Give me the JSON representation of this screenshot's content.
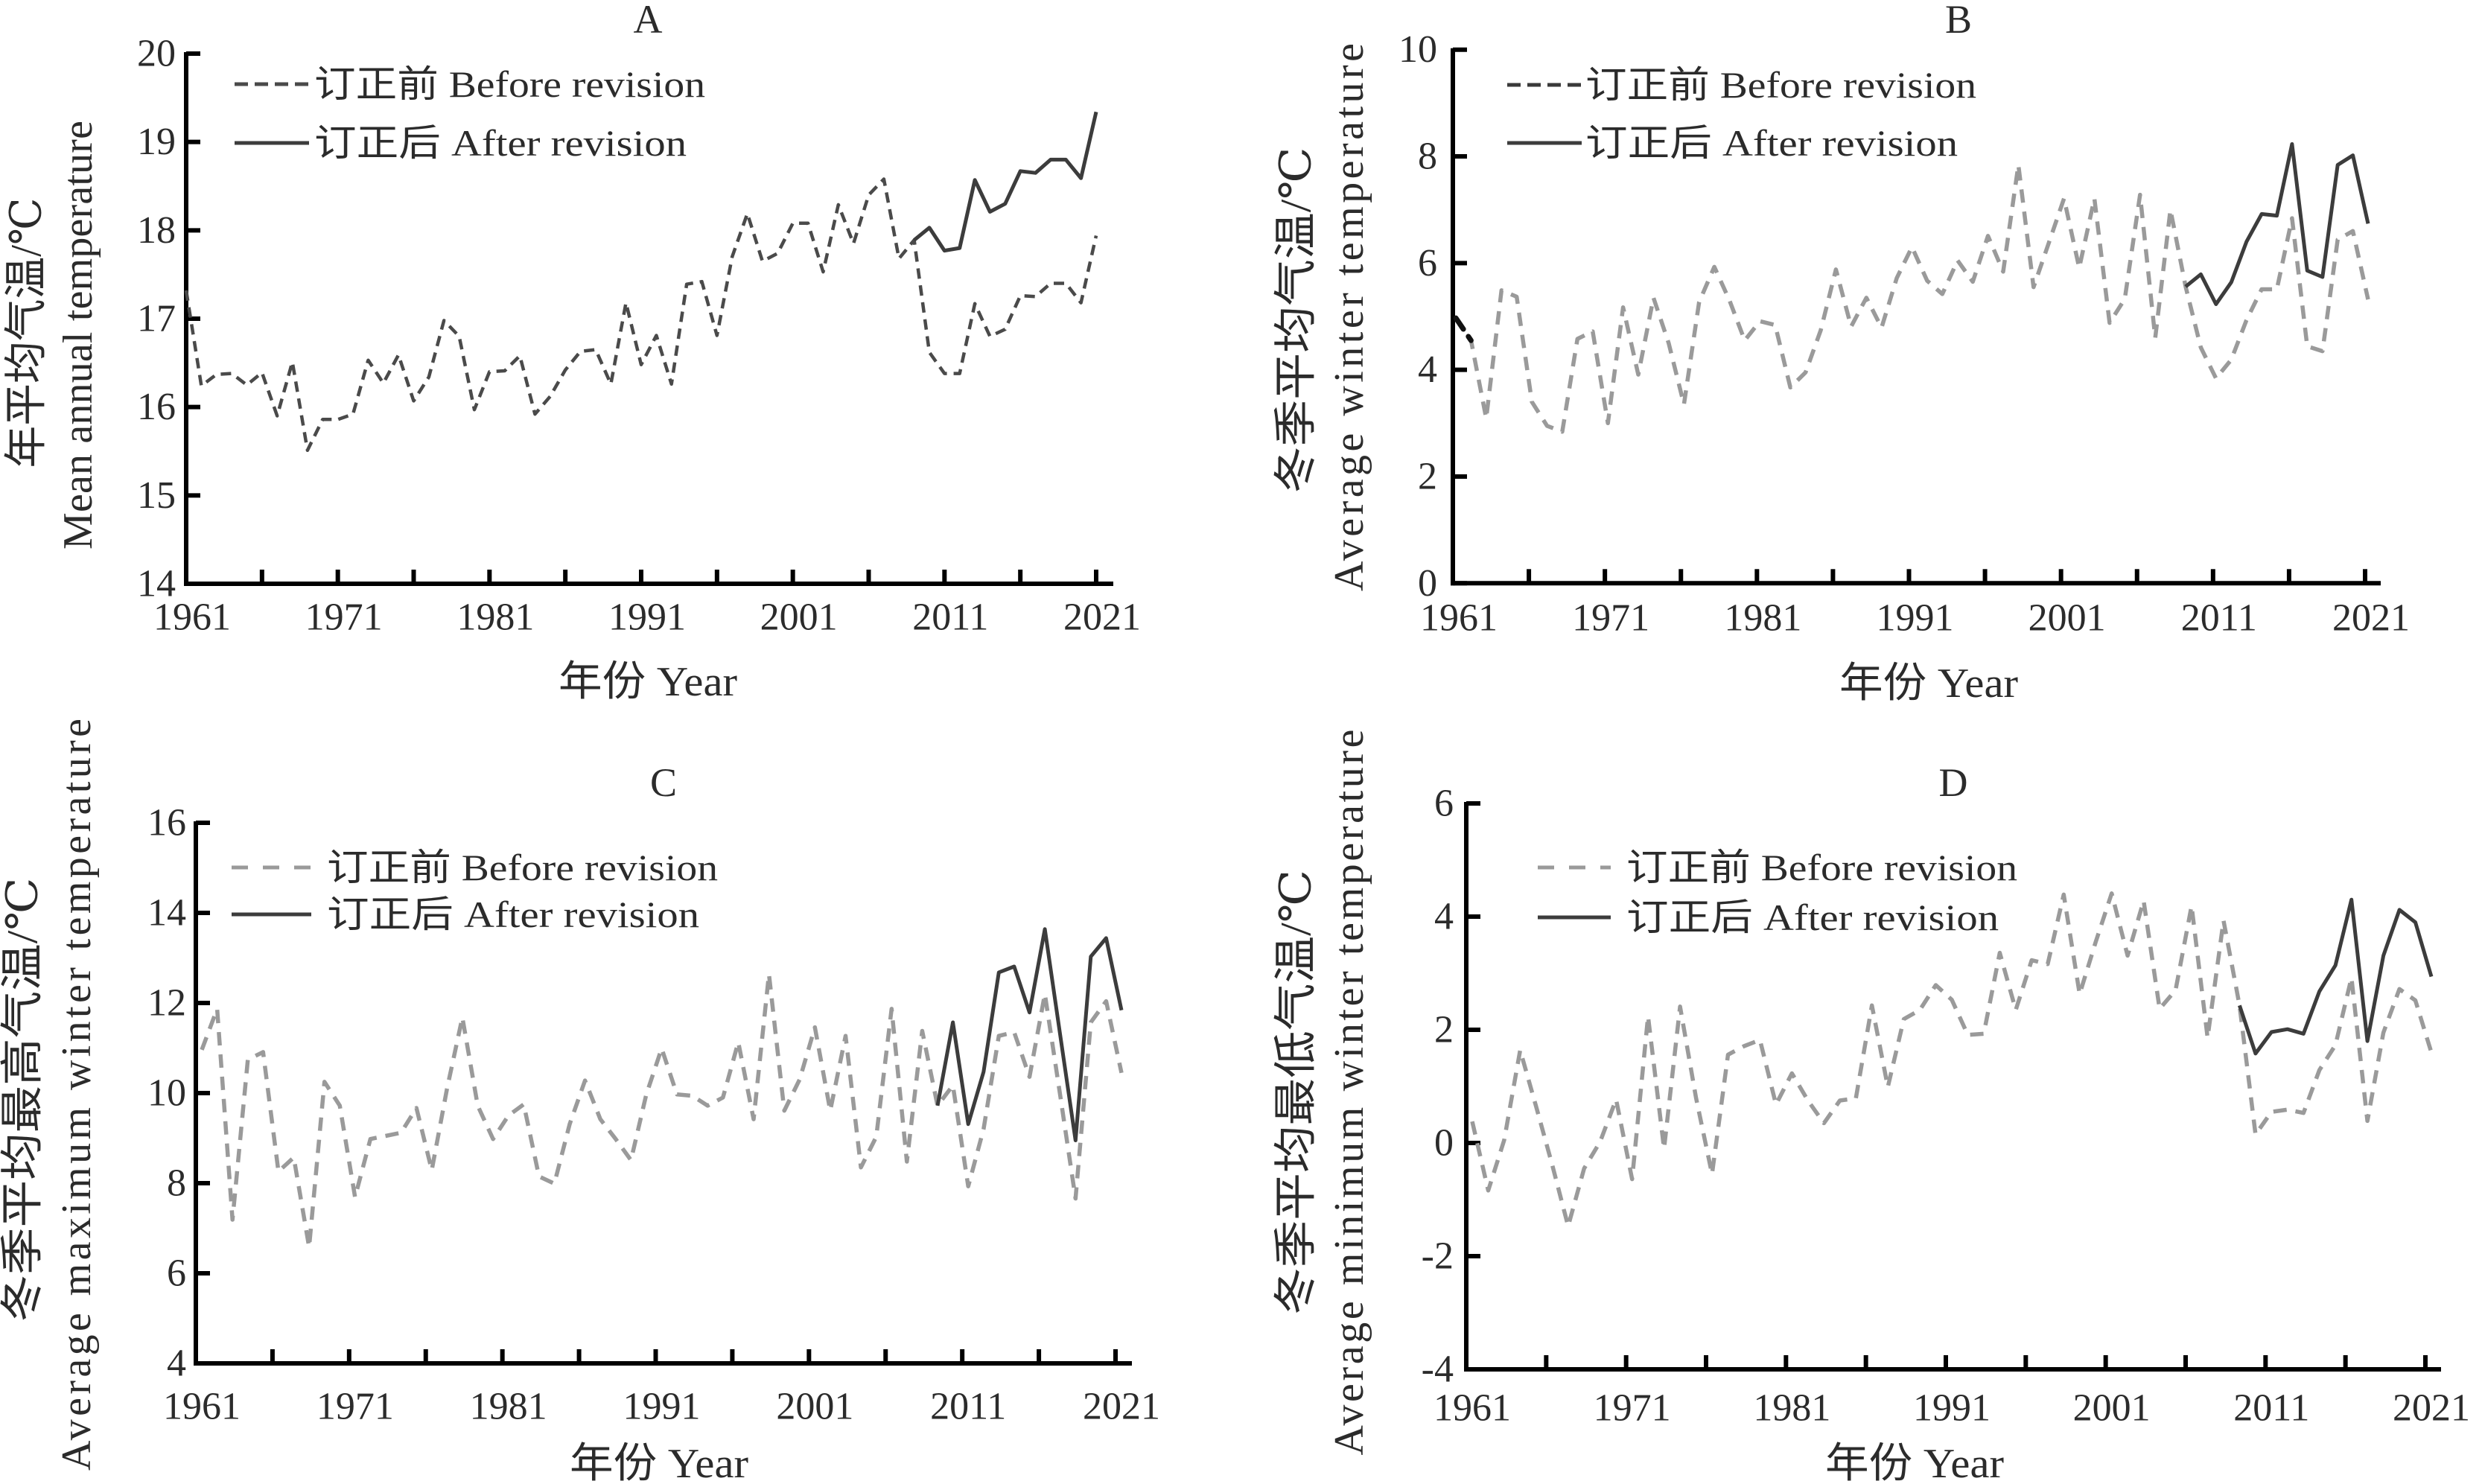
{
  "chart_data": [
    {
      "panel": "A",
      "type": "line",
      "title": "A",
      "xlabel": "年份 Year",
      "ylabel": [
        "年平均气温/℃",
        "Mean annual temperature"
      ],
      "xlim": [
        1961,
        2021
      ],
      "ylim": [
        14,
        20
      ],
      "grid": false,
      "legend": {
        "position": "top-left"
      },
      "xticks": [
        1961,
        1966,
        1971,
        1976,
        1981,
        1986,
        1991,
        1996,
        2001,
        2006,
        2011,
        2016,
        2021
      ],
      "xtick_labels": [
        "1961",
        "1971",
        "1981",
        "1991",
        "2001",
        "2011",
        "2021"
      ],
      "yticks": [
        14,
        15,
        16,
        17,
        18,
        19,
        20
      ],
      "ytick_labels": [
        "14",
        "15",
        "16",
        "17",
        "18",
        "19",
        "20"
      ],
      "series": [
        {
          "name": "订正前 Before revision",
          "style": "dashed",
          "color": "#4a4a4a",
          "legend_color": "#4a4a4a",
          "x": [
            1961,
            1962,
            1963,
            1964,
            1965,
            1966,
            1967,
            1968,
            1969,
            1970,
            1971,
            1972,
            1973,
            1974,
            1975,
            1976,
            1977,
            1978,
            1979,
            1980,
            1981,
            1982,
            1983,
            1984,
            1985,
            1986,
            1987,
            1988,
            1989,
            1990,
            1991,
            1992,
            1993,
            1994,
            1995,
            1996,
            1997,
            1998,
            1999,
            2000,
            2001,
            2002,
            2003,
            2004,
            2005,
            2006,
            2007,
            2008,
            2009,
            2010,
            2011,
            2012,
            2013,
            2014,
            2015,
            2016,
            2017,
            2018,
            2019,
            2020,
            2021
          ],
          "values": [
            17.32,
            16.24,
            16.37,
            16.38,
            16.25,
            16.39,
            15.9,
            16.51,
            15.51,
            15.86,
            15.86,
            15.92,
            16.53,
            16.27,
            16.59,
            16.07,
            16.34,
            16.98,
            16.8,
            15.97,
            16.4,
            16.41,
            16.58,
            15.92,
            16.12,
            16.42,
            16.63,
            16.65,
            16.26,
            17.18,
            16.48,
            16.81,
            16.26,
            17.39,
            17.42,
            16.81,
            17.7,
            18.19,
            17.65,
            17.74,
            18.08,
            18.08,
            17.53,
            18.29,
            17.85,
            18.4,
            18.58,
            17.68,
            17.89,
            16.62,
            16.38,
            16.38,
            17.17,
            16.8,
            16.88,
            17.26,
            17.25,
            17.4,
            17.4,
            17.18,
            17.94
          ]
        },
        {
          "name": "订正后 After revision",
          "style": "solid",
          "color": "#3c3c3c",
          "legend_color": "#3c3c3c",
          "x": [
            2009,
            2010,
            2011,
            2012,
            2013,
            2014,
            2015,
            2016,
            2017,
            2018,
            2019,
            2020,
            2021
          ],
          "values": [
            17.89,
            18.03,
            17.77,
            17.8,
            18.57,
            18.21,
            18.3,
            18.67,
            18.65,
            18.8,
            18.8,
            18.59,
            19.34
          ]
        }
      ]
    },
    {
      "panel": "B",
      "type": "line",
      "title": "B",
      "xlabel": "年份 Year",
      "ylabel": [
        "冬季平均气温/℃",
        "Average winter temperature"
      ],
      "xlim": [
        1961,
        2021
      ],
      "ylim": [
        0,
        10
      ],
      "grid": false,
      "legend": {
        "position": "top-left"
      },
      "xticks": [
        1961,
        1966,
        1971,
        1976,
        1981,
        1986,
        1991,
        1996,
        2001,
        2006,
        2011,
        2016,
        2021
      ],
      "xtick_labels": [
        "1961",
        "1971",
        "1981",
        "1991",
        "2001",
        "2011",
        "2021"
      ],
      "yticks": [
        0,
        2,
        4,
        6,
        8,
        10
      ],
      "ytick_labels": [
        "0",
        "2",
        "4",
        "6",
        "8",
        "10"
      ],
      "series": [
        {
          "name": "订正前 Before revision",
          "style": "dashed",
          "color": "#9a9a9a",
          "legend_color": "#3a3a3a",
          "start_segment_color": "#111111",
          "x": [
            1961,
            1962,
            1963,
            1964,
            1965,
            1966,
            1967,
            1968,
            1969,
            1970,
            1971,
            1972,
            1973,
            1974,
            1975,
            1976,
            1977,
            1978,
            1979,
            1980,
            1981,
            1982,
            1983,
            1984,
            1985,
            1986,
            1987,
            1988,
            1989,
            1990,
            1991,
            1992,
            1993,
            1994,
            1995,
            1996,
            1997,
            1998,
            1999,
            2000,
            2001,
            2002,
            2003,
            2004,
            2005,
            2006,
            2007,
            2008,
            2009,
            2010,
            2011,
            2012,
            2013,
            2014,
            2015,
            2016,
            2017,
            2018,
            2019,
            2020,
            2021
          ],
          "values": [
            4.97,
            4.55,
            3.09,
            5.49,
            5.37,
            3.4,
            2.95,
            2.84,
            4.58,
            4.72,
            3.0,
            5.17,
            3.91,
            5.35,
            4.5,
            3.35,
            5.27,
            5.93,
            5.3,
            4.55,
            4.91,
            4.84,
            3.67,
            3.95,
            4.74,
            5.88,
            4.81,
            5.35,
            4.79,
            5.72,
            6.3,
            5.67,
            5.42,
            6.05,
            5.65,
            6.51,
            5.84,
            7.84,
            5.55,
            6.38,
            7.21,
            5.91,
            7.21,
            4.88,
            5.33,
            7.28,
            4.6,
            7.0,
            5.56,
            4.42,
            3.84,
            4.19,
            4.93,
            5.51,
            5.51,
            6.84,
            4.44,
            4.35,
            6.44,
            6.6,
            5.32
          ]
        },
        {
          "name": "订正后 After revision",
          "style": "solid",
          "color": "#3c3c3c",
          "legend_color": "#3c3c3c",
          "x": [
            2009,
            2010,
            2011,
            2012,
            2013,
            2014,
            2015,
            2016,
            2017,
            2018,
            2019,
            2020,
            2021
          ],
          "values": [
            5.56,
            5.79,
            5.23,
            5.64,
            6.4,
            6.92,
            6.89,
            8.23,
            5.86,
            5.74,
            7.84,
            8.02,
            6.74
          ]
        }
      ]
    },
    {
      "panel": "C",
      "type": "line",
      "title": "C",
      "xlabel": "年份 Year",
      "ylabel": [
        "冬季平均最高气温/℃",
        "Average maximum winter temperature"
      ],
      "xlim": [
        1961,
        2021
      ],
      "ylim": [
        4,
        16
      ],
      "grid": false,
      "legend": {
        "position": "top-left"
      },
      "xticks": [
        1961,
        1966,
        1971,
        1976,
        1981,
        1986,
        1991,
        1996,
        2001,
        2006,
        2011,
        2016,
        2021
      ],
      "xtick_labels": [
        "1961",
        "1971",
        "1981",
        "1991",
        "2001",
        "2011",
        "2021"
      ],
      "yticks": [
        4,
        6,
        8,
        10,
        12,
        14,
        16
      ],
      "ytick_labels": [
        "4",
        "6",
        "8",
        "10",
        "12",
        "14",
        "16"
      ],
      "series": [
        {
          "name": "订正前 Before revision",
          "style": "dashed",
          "color": "#9a9a9a",
          "legend_color": "#9a9a9a",
          "x": [
            1961,
            1962,
            1963,
            1964,
            1965,
            1966,
            1967,
            1968,
            1969,
            1970,
            1971,
            1972,
            1973,
            1974,
            1975,
            1976,
            1977,
            1978,
            1979,
            1980,
            1981,
            1982,
            1983,
            1984,
            1985,
            1986,
            1987,
            1988,
            1989,
            1990,
            1991,
            1992,
            1993,
            1994,
            1995,
            1996,
            1997,
            1998,
            1999,
            2000,
            2001,
            2002,
            2003,
            2004,
            2005,
            2006,
            2007,
            2008,
            2009,
            2010,
            2011,
            2012,
            2013,
            2014,
            2015,
            2016,
            2017,
            2018,
            2019,
            2020,
            2021
          ],
          "values": [
            10.96,
            11.87,
            7.19,
            10.74,
            10.91,
            8.26,
            8.57,
            6.58,
            10.25,
            9.72,
            7.69,
            8.98,
            9.05,
            9.12,
            9.67,
            8.29,
            10.1,
            11.68,
            9.72,
            8.98,
            9.5,
            9.75,
            8.15,
            7.99,
            9.31,
            10.28,
            9.42,
            8.98,
            8.51,
            9.97,
            10.99,
            9.97,
            9.94,
            9.72,
            9.9,
            11.13,
            9.42,
            12.64,
            9.61,
            10.3,
            11.46,
            9.61,
            11.27,
            8.35,
            9.03,
            11.87,
            8.48,
            11.38,
            9.72,
            10.17,
            7.93,
            9.2,
            11.27,
            11.35,
            10.36,
            12.2,
            9.95,
            7.66,
            11.57,
            12.04,
            10.45
          ]
        },
        {
          "name": "订正后 After revision",
          "style": "solid",
          "color": "#3c3c3c",
          "legend_color": "#3c3c3c",
          "x": [
            2009,
            2010,
            2011,
            2012,
            2013,
            2014,
            2015,
            2016,
            2017,
            2018,
            2019,
            2020,
            2021
          ],
          "values": [
            9.72,
            11.57,
            9.31,
            10.47,
            12.68,
            12.81,
            11.79,
            13.64,
            11.29,
            8.95,
            13.03,
            13.44,
            11.84
          ]
        }
      ]
    },
    {
      "panel": "D",
      "type": "line",
      "title": "D",
      "xlabel": "年份 Year",
      "ylabel": [
        "冬季平均最低气温/℃",
        "Average minimum winter temperature"
      ],
      "xlim": [
        1961,
        2021
      ],
      "ylim": [
        -4,
        6
      ],
      "grid": false,
      "legend": {
        "position": "top-left"
      },
      "xticks": [
        1961,
        1966,
        1971,
        1976,
        1981,
        1986,
        1991,
        1996,
        2001,
        2006,
        2011,
        2016,
        2021
      ],
      "xtick_labels": [
        "1961",
        "1971",
        "1981",
        "1991",
        "2001",
        "2011",
        "2021"
      ],
      "yticks": [
        -4,
        -2,
        0,
        2,
        4,
        6
      ],
      "ytick_labels": [
        "-4",
        "-2",
        "0",
        "2",
        "4",
        "6"
      ],
      "series": [
        {
          "name": "订正前 Before revision",
          "style": "dashed",
          "color": "#9a9a9a",
          "legend_color": "#9a9a9a",
          "x": [
            1961,
            1962,
            1963,
            1964,
            1965,
            1966,
            1967,
            1968,
            1969,
            1970,
            1971,
            1972,
            1973,
            1974,
            1975,
            1976,
            1977,
            1978,
            1979,
            1980,
            1981,
            1982,
            1983,
            1984,
            1985,
            1986,
            1987,
            1988,
            1989,
            1990,
            1991,
            1992,
            1993,
            1994,
            1995,
            1996,
            1997,
            1998,
            1999,
            2000,
            2001,
            2002,
            2003,
            2004,
            2005,
            2006,
            2007,
            2008,
            2009,
            2010,
            2011,
            2012,
            2013,
            2014,
            2015,
            2016,
            2017,
            2018,
            2019,
            2020,
            2021
          ],
          "values": [
            0.38,
            -0.84,
            0.05,
            1.64,
            0.64,
            -0.38,
            -1.47,
            -0.45,
            0.02,
            0.77,
            -0.64,
            2.24,
            -0.1,
            2.41,
            0.8,
            -0.55,
            1.56,
            1.71,
            1.82,
            0.68,
            1.23,
            0.75,
            0.35,
            0.75,
            0.79,
            2.43,
            0.99,
            2.19,
            2.35,
            2.79,
            2.53,
            1.91,
            1.93,
            3.36,
            2.35,
            3.23,
            3.16,
            4.39,
            2.63,
            3.55,
            4.41,
            3.31,
            4.28,
            2.37,
            2.7,
            4.19,
            1.86,
            3.93,
            2.43,
            0.15,
            0.55,
            0.59,
            0.53,
            1.29,
            1.73,
            2.92,
            0.39,
            1.95,
            2.72,
            2.52,
            1.6
          ]
        },
        {
          "name": "订正后 After revision",
          "style": "solid",
          "color": "#3c3c3c",
          "legend_color": "#3c3c3c",
          "x": [
            2009,
            2010,
            2011,
            2012,
            2013,
            2014,
            2015,
            2016,
            2017,
            2018,
            2019,
            2020,
            2021
          ],
          "values": [
            2.43,
            1.58,
            1.96,
            2.01,
            1.93,
            2.68,
            3.14,
            4.3,
            1.8,
            3.31,
            4.12,
            3.9,
            2.94
          ]
        }
      ]
    }
  ]
}
